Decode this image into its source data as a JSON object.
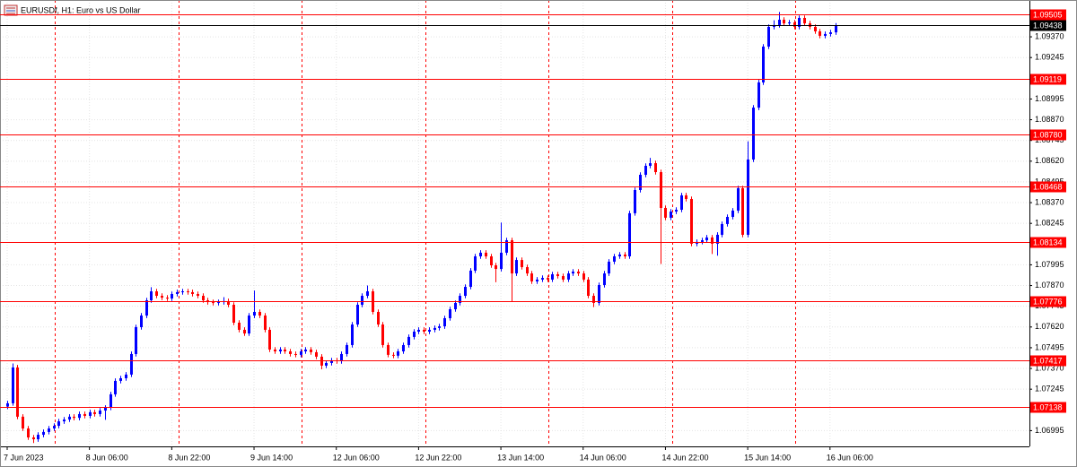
{
  "chart_data": {
    "type": "candlestick",
    "title": "EURUSDf, H1:  Euro vs US Dollar",
    "up_color": "#0000ff",
    "down_color": "#ff0000",
    "level_color": "#ff0000",
    "grid": true,
    "ylim": [
      1.069,
      1.09592
    ],
    "yticks": [
      {
        "value": 1.0937,
        "label": "1.09370"
      },
      {
        "value": 1.09245,
        "label": "1.09245"
      },
      {
        "value": 1.08995,
        "label": "1.08995"
      },
      {
        "value": 1.0887,
        "label": "1.08870"
      },
      {
        "value": 1.08745,
        "label": "1.08745"
      },
      {
        "value": 1.0862,
        "label": "1.08620"
      },
      {
        "value": 1.08495,
        "label": "1.08495"
      },
      {
        "value": 1.0837,
        "label": "1.08370"
      },
      {
        "value": 1.08245,
        "label": "1.08245"
      },
      {
        "value": 1.07995,
        "label": "1.07995"
      },
      {
        "value": 1.0787,
        "label": "1.07870"
      },
      {
        "value": 1.07745,
        "label": "1.07745"
      },
      {
        "value": 1.0762,
        "label": "1.07620"
      },
      {
        "value": 1.07495,
        "label": "1.07495"
      },
      {
        "value": 1.0737,
        "label": "1.07370"
      },
      {
        "value": 1.07245,
        "label": "1.07245"
      },
      {
        "value": 1.06995,
        "label": "1.06995"
      }
    ],
    "levels": [
      {
        "value": 1.09505,
        "label": "1.09505"
      },
      {
        "value": 1.09119,
        "label": "1.09119"
      },
      {
        "value": 1.0878,
        "label": "1.08780"
      },
      {
        "value": 1.08468,
        "label": "1.08468"
      },
      {
        "value": 1.08134,
        "label": "1.08134"
      },
      {
        "value": 1.07776,
        "label": "1.07776"
      },
      {
        "value": 1.07417,
        "label": "1.07417"
      },
      {
        "value": 1.07138,
        "label": "1.07138"
      }
    ],
    "current_price": {
      "value": 1.09438,
      "label": "1.09438"
    },
    "categories": [
      "7 Jun 2023",
      null,
      null,
      null,
      null,
      null,
      null,
      null,
      null,
      null,
      null,
      null,
      null,
      null,
      null,
      null,
      "8 Jun 06:00",
      null,
      null,
      null,
      null,
      null,
      null,
      null,
      null,
      null,
      null,
      null,
      null,
      null,
      null,
      null,
      "8 Jun 22:00",
      null,
      null,
      null,
      null,
      null,
      null,
      null,
      null,
      null,
      null,
      null,
      null,
      null,
      null,
      null,
      "9 Jun 14:00",
      null,
      null,
      null,
      null,
      null,
      null,
      null,
      null,
      null,
      null,
      null,
      null,
      null,
      null,
      null,
      "12 Jun 06:00",
      null,
      null,
      null,
      null,
      null,
      null,
      null,
      null,
      null,
      null,
      null,
      null,
      null,
      null,
      null,
      "12 Jun 22:00",
      null,
      null,
      null,
      null,
      null,
      null,
      null,
      null,
      null,
      null,
      null,
      null,
      null,
      null,
      null,
      "13 Jun 14:00",
      null,
      null,
      null,
      null,
      null,
      null,
      null,
      null,
      null,
      null,
      null,
      null,
      null,
      null,
      null,
      "14 Jun 06:00",
      null,
      null,
      null,
      null,
      null,
      null,
      null,
      null,
      null,
      null,
      null,
      null,
      null,
      null,
      null,
      "14 Jun 22:00",
      null,
      null,
      null,
      null,
      null,
      null,
      null,
      null,
      null,
      null,
      null,
      null,
      null,
      null,
      null,
      "15 Jun 14:00",
      null,
      null,
      null,
      null,
      null,
      null,
      null,
      null,
      null,
      null,
      null,
      null,
      null,
      null,
      null,
      "16 Jun 06:00",
      null
    ],
    "ohlc": [
      [
        1.0714,
        1.07175,
        1.07125,
        1.0716
      ],
      [
        1.0716,
        1.074,
        1.07145,
        1.07376
      ],
      [
        1.07376,
        1.07391,
        1.07064,
        1.07079
      ],
      [
        1.07079,
        1.07094,
        1.06993,
        1.07008
      ],
      [
        1.07008,
        1.07023,
        1.06939,
        1.06954
      ],
      [
        1.06954,
        1.06969,
        1.0692,
        1.06943
      ],
      [
        1.06943,
        1.06985,
        1.06928,
        1.0697
      ],
      [
        1.0697,
        1.07002,
        1.06955,
        1.06987
      ],
      [
        1.06987,
        1.07023,
        1.06972,
        1.07008
      ],
      [
        1.07008,
        1.07039,
        1.06993,
        1.07024
      ],
      [
        1.07024,
        1.07066,
        1.07009,
        1.07051
      ],
      [
        1.07051,
        1.07077,
        1.07036,
        1.07062
      ],
      [
        1.07062,
        1.07094,
        1.07047,
        1.07079
      ],
      [
        1.07079,
        1.07094,
        1.07057,
        1.07072
      ],
      [
        1.07072,
        1.0711,
        1.07057,
        1.07095
      ],
      [
        1.07095,
        1.0711,
        1.07069,
        1.07084
      ],
      [
        1.07084,
        1.07121,
        1.07069,
        1.07106
      ],
      [
        1.07106,
        1.07121,
        1.0708,
        1.07095
      ],
      [
        1.07095,
        1.07131,
        1.0708,
        1.07116
      ],
      [
        1.07116,
        1.07148,
        1.0706,
        1.07133
      ],
      [
        1.07133,
        1.07229,
        1.07118,
        1.07214
      ],
      [
        1.07214,
        1.0731,
        1.07199,
        1.07295
      ],
      [
        1.07295,
        1.07326,
        1.0728,
        1.07311
      ],
      [
        1.07311,
        1.07348,
        1.07296,
        1.07333
      ],
      [
        1.07333,
        1.07472,
        1.07318,
        1.07457
      ],
      [
        1.07457,
        1.07634,
        1.07442,
        1.07619
      ],
      [
        1.07619,
        1.07704,
        1.07604,
        1.07689
      ],
      [
        1.07689,
        1.07796,
        1.07674,
        1.07781
      ],
      [
        1.07781,
        1.0786,
        1.07766,
        1.07835
      ],
      [
        1.07835,
        1.0785,
        1.07793,
        1.07808
      ],
      [
        1.07808,
        1.07823,
        1.07782,
        1.07797
      ],
      [
        1.07797,
        1.07812,
        1.07777,
        1.07792
      ],
      [
        1.07792,
        1.07834,
        1.07777,
        1.07819
      ],
      [
        1.07819,
        1.07845,
        1.07804,
        1.0783
      ],
      [
        1.0783,
        1.0785,
        1.07815,
        1.07835
      ],
      [
        1.07835,
        1.0785,
        1.07815,
        1.0783
      ],
      [
        1.0783,
        1.07845,
        1.07804,
        1.07819
      ],
      [
        1.07819,
        1.07834,
        1.07793,
        1.07808
      ],
      [
        1.07808,
        1.07823,
        1.07766,
        1.07781
      ],
      [
        1.07781,
        1.07796,
        1.07755,
        1.0777
      ],
      [
        1.0777,
        1.07785,
        1.0775,
        1.07765
      ],
      [
        1.07765,
        1.07785,
        1.0775,
        1.0777
      ],
      [
        1.0777,
        1.078,
        1.07755,
        1.07776
      ],
      [
        1.07776,
        1.07791,
        1.07739,
        1.07754
      ],
      [
        1.07754,
        1.07769,
        1.07631,
        1.07646
      ],
      [
        1.07646,
        1.07661,
        1.07588,
        1.07603
      ],
      [
        1.07603,
        1.07618,
        1.07566,
        1.07581
      ],
      [
        1.07581,
        1.07704,
        1.07566,
        1.07689
      ],
      [
        1.07689,
        1.0784,
        1.07674,
        1.07711
      ],
      [
        1.07711,
        1.07726,
        1.07674,
        1.07689
      ],
      [
        1.07689,
        1.07704,
        1.07588,
        1.07603
      ],
      [
        1.07603,
        1.07618,
        1.07469,
        1.07484
      ],
      [
        1.07484,
        1.07499,
        1.07458,
        1.07473
      ],
      [
        1.07473,
        1.07499,
        1.07458,
        1.07484
      ],
      [
        1.07484,
        1.07499,
        1.07458,
        1.07473
      ],
      [
        1.07473,
        1.07488,
        1.07442,
        1.07457
      ],
      [
        1.07457,
        1.07472,
        1.07437,
        1.07452
      ],
      [
        1.07452,
        1.07488,
        1.07437,
        1.07473
      ],
      [
        1.07473,
        1.07499,
        1.07458,
        1.07484
      ],
      [
        1.07484,
        1.07499,
        1.07453,
        1.07468
      ],
      [
        1.07468,
        1.07483,
        1.07426,
        1.07441
      ],
      [
        1.07441,
        1.07456,
        1.07365,
        1.07387
      ],
      [
        1.07387,
        1.07418,
        1.07372,
        1.07403
      ],
      [
        1.07403,
        1.07434,
        1.07388,
        1.07419
      ],
      [
        1.07419,
        1.07434,
        1.07399,
        1.07414
      ],
      [
        1.07414,
        1.07472,
        1.07399,
        1.07457
      ],
      [
        1.07457,
        1.07526,
        1.07442,
        1.07511
      ],
      [
        1.07511,
        1.0765,
        1.07496,
        1.07635
      ],
      [
        1.07635,
        1.07769,
        1.0762,
        1.07754
      ],
      [
        1.07754,
        1.07823,
        1.07739,
        1.07808
      ],
      [
        1.07808,
        1.0787,
        1.07793,
        1.07835
      ],
      [
        1.07835,
        1.0785,
        1.07696,
        1.07711
      ],
      [
        1.07711,
        1.07726,
        1.0762,
        1.07635
      ],
      [
        1.07635,
        1.0765,
        1.07496,
        1.07511
      ],
      [
        1.07511,
        1.07526,
        1.07437,
        1.07452
      ],
      [
        1.07452,
        1.07467,
        1.07432,
        1.07447
      ],
      [
        1.07447,
        1.07488,
        1.07432,
        1.07473
      ],
      [
        1.07473,
        1.07526,
        1.07458,
        1.07511
      ],
      [
        1.07511,
        1.07575,
        1.07496,
        1.0756
      ],
      [
        1.0756,
        1.07607,
        1.07545,
        1.07592
      ],
      [
        1.07592,
        1.07618,
        1.07577,
        1.07603
      ],
      [
        1.07603,
        1.07618,
        1.07577,
        1.07592
      ],
      [
        1.07592,
        1.07618,
        1.07577,
        1.07603
      ],
      [
        1.07603,
        1.07629,
        1.07588,
        1.07614
      ],
      [
        1.07614,
        1.07639,
        1.07599,
        1.07624
      ],
      [
        1.07624,
        1.07688,
        1.07609,
        1.07673
      ],
      [
        1.07673,
        1.07742,
        1.07658,
        1.07727
      ],
      [
        1.07727,
        1.0778,
        1.07712,
        1.07765
      ],
      [
        1.07765,
        1.07823,
        1.0775,
        1.07808
      ],
      [
        1.07808,
        1.07877,
        1.07793,
        1.07862
      ],
      [
        1.07862,
        1.07975,
        1.07847,
        1.0796
      ],
      [
        1.0796,
        1.08061,
        1.07945,
        1.08046
      ],
      [
        1.08046,
        1.08083,
        1.08031,
        1.08068
      ],
      [
        1.08068,
        1.08083,
        1.08031,
        1.08046
      ],
      [
        1.08046,
        1.08061,
        1.07977,
        1.07992
      ],
      [
        1.07992,
        1.08007,
        1.0789,
        1.0797
      ],
      [
        1.0797,
        1.0825,
        1.07955,
        1.08068
      ],
      [
        1.08068,
        1.08158,
        1.08053,
        1.08143
      ],
      [
        1.08143,
        1.08158,
        1.0777,
        1.07943
      ],
      [
        1.07943,
        1.08039,
        1.07928,
        1.08024
      ],
      [
        1.08024,
        1.08039,
        1.07966,
        1.07981
      ],
      [
        1.07981,
        1.07996,
        1.07928,
        1.07943
      ],
      [
        1.07943,
        1.07958,
        1.0788,
        1.07895
      ],
      [
        1.07895,
        1.07921,
        1.0788,
        1.07906
      ],
      [
        1.07906,
        1.07931,
        1.07891,
        1.07916
      ],
      [
        1.07916,
        1.07931,
        1.07891,
        1.07906
      ],
      [
        1.07906,
        1.07953,
        1.07891,
        1.07938
      ],
      [
        1.07938,
        1.07953,
        1.07912,
        1.07927
      ],
      [
        1.07927,
        1.07942,
        1.07891,
        1.07906
      ],
      [
        1.07906,
        1.07958,
        1.07891,
        1.07943
      ],
      [
        1.07943,
        1.07969,
        1.07928,
        1.07954
      ],
      [
        1.07954,
        1.07969,
        1.07928,
        1.07943
      ],
      [
        1.07943,
        1.07958,
        1.07891,
        1.07906
      ],
      [
        1.07906,
        1.07921,
        1.07793,
        1.07808
      ],
      [
        1.07808,
        1.07823,
        1.0774,
        1.07765
      ],
      [
        1.07765,
        1.07888,
        1.0775,
        1.07873
      ],
      [
        1.07873,
        1.07958,
        1.07858,
        1.07943
      ],
      [
        1.07943,
        1.08029,
        1.07928,
        1.08014
      ],
      [
        1.08014,
        1.08061,
        1.07999,
        1.08046
      ],
      [
        1.08046,
        1.08072,
        1.08031,
        1.08057
      ],
      [
        1.08057,
        1.08072,
        1.08031,
        1.08046
      ],
      [
        1.08046,
        1.08321,
        1.08031,
        1.08306
      ],
      [
        1.08306,
        1.08461,
        1.08291,
        1.08446
      ],
      [
        1.08446,
        1.08553,
        1.08431,
        1.08538
      ],
      [
        1.08538,
        1.08607,
        1.08523,
        1.08592
      ],
      [
        1.08592,
        1.0864,
        1.08577,
        1.08608
      ],
      [
        1.08608,
        1.08623,
        1.08539,
        1.08554
      ],
      [
        1.08554,
        1.08569,
        1.08,
        1.08338
      ],
      [
        1.08338,
        1.08353,
        1.08264,
        1.08279
      ],
      [
        1.08279,
        1.08331,
        1.08264,
        1.08316
      ],
      [
        1.08316,
        1.08342,
        1.08301,
        1.08327
      ],
      [
        1.08327,
        1.08429,
        1.08312,
        1.08414
      ],
      [
        1.08414,
        1.08429,
        1.08377,
        1.08392
      ],
      [
        1.08392,
        1.08407,
        1.08107,
        1.08122
      ],
      [
        1.08122,
        1.08148,
        1.08107,
        1.08133
      ],
      [
        1.08133,
        1.08158,
        1.08118,
        1.08143
      ],
      [
        1.08143,
        1.08175,
        1.08128,
        1.0816
      ],
      [
        1.0816,
        1.08175,
        1.0806,
        1.08122
      ],
      [
        1.08122,
        1.08191,
        1.0805,
        1.08176
      ],
      [
        1.08176,
        1.08256,
        1.08161,
        1.08241
      ],
      [
        1.08241,
        1.08299,
        1.08226,
        1.08284
      ],
      [
        1.08284,
        1.08337,
        1.08269,
        1.08322
      ],
      [
        1.08322,
        1.08472,
        1.08307,
        1.08457
      ],
      [
        1.08457,
        1.08472,
        1.08161,
        1.08176
      ],
      [
        1.08176,
        1.0874,
        1.08161,
        1.0863
      ],
      [
        1.0863,
        1.08958,
        1.08615,
        1.08943
      ],
      [
        1.08943,
        1.0911,
        1.08928,
        1.09095
      ],
      [
        1.09095,
        1.09326,
        1.0908,
        1.09311
      ],
      [
        1.09311,
        1.09445,
        1.09296,
        1.0943
      ],
      [
        1.0943,
        1.0947,
        1.09415,
        1.09441
      ],
      [
        1.09441,
        1.0952,
        1.09426,
        1.09473
      ],
      [
        1.09473,
        1.09488,
        1.09436,
        1.09451
      ],
      [
        1.09451,
        1.09472,
        1.09436,
        1.09457
      ],
      [
        1.09457,
        1.09472,
        1.09415,
        1.0943
      ],
      [
        1.0943,
        1.09499,
        1.09415,
        1.09484
      ],
      [
        1.09484,
        1.09499,
        1.09436,
        1.09451
      ],
      [
        1.09451,
        1.09466,
        1.09415,
        1.0943
      ],
      [
        1.0943,
        1.09445,
        1.09388,
        1.09403
      ],
      [
        1.09403,
        1.09418,
        1.09361,
        1.09376
      ],
      [
        1.09376,
        1.09402,
        1.09361,
        1.09387
      ],
      [
        1.09387,
        1.09412,
        1.09372,
        1.09397
      ],
      [
        1.09397,
        1.09453,
        1.09382,
        1.09438
      ]
    ]
  }
}
